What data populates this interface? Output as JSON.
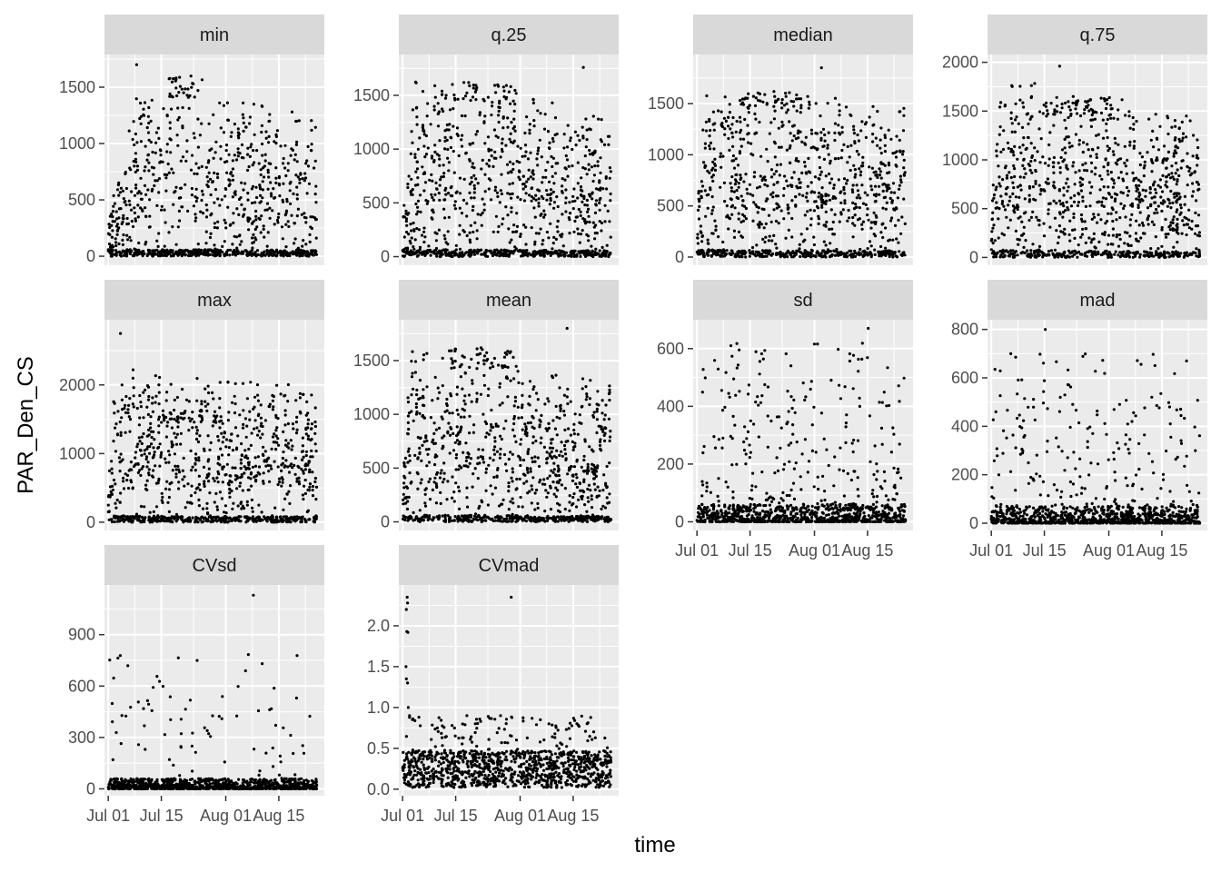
{
  "chart_data": {
    "type": "scatter",
    "facet_layout": "wrap",
    "xlabel": "time",
    "ylabel": "PAR_Den_CS",
    "x_ticks": [
      "Jul 01",
      "Jul 15",
      "Aug 01",
      "Aug 15"
    ],
    "x_tick_dates": [
      "2020-07-01",
      "2020-07-15",
      "2020-08-01",
      "2020-08-15"
    ],
    "xlim": [
      "2020-06-30",
      "2020-08-27"
    ],
    "x_data_range": [
      "2020-07-01",
      "2020-08-25"
    ],
    "grid": true,
    "legend": "none",
    "colors": {
      "panel_background": "#ebebeb",
      "grid": "#ffffff",
      "strip_background": "#d9d9d9",
      "points": "#000000",
      "tick": "#333333"
    },
    "panels": [
      {
        "label": "min",
        "ylim": [
          -80,
          1790
        ],
        "y_ticks": [
          0,
          500,
          1000,
          1500
        ],
        "y_tick_labels": [
          "0",
          "500",
          "1000",
          "1500"
        ],
        "profile": "band",
        "peak": 1700,
        "bandTop": 1600,
        "bandStartDay": 15,
        "bandEndDay": 25,
        "ceilStart": 1550,
        "ceilEnd": 1350,
        "rampDays": 10,
        "zeroFrac": 0.42
      },
      {
        "label": "q.25",
        "ylim": [
          -80,
          1880
        ],
        "y_ticks": [
          0,
          500,
          1000,
          1500
        ],
        "y_tick_labels": [
          "0",
          "500",
          "1000",
          "1500"
        ],
        "profile": "band",
        "peak": 1760,
        "bandTop": 1620,
        "bandStartDay": 13,
        "bandEndDay": 30,
        "ceilStart": 1700,
        "ceilEnd": 1400,
        "rampDays": 4,
        "zeroFrac": 0.32
      },
      {
        "label": "median",
        "ylim": [
          -80,
          1980
        ],
        "y_ticks": [
          0,
          500,
          1000,
          1500
        ],
        "y_tick_labels": [
          "0",
          "500",
          "1000",
          "1500"
        ],
        "profile": "band",
        "peak": 1850,
        "bandTop": 1620,
        "bandStartDay": 12,
        "bandEndDay": 30,
        "ceilStart": 1700,
        "ceilEnd": 1500,
        "rampDays": 3,
        "zeroFrac": 0.3
      },
      {
        "label": "q.75",
        "ylim": [
          -80,
          2080
        ],
        "y_ticks": [
          0,
          500,
          1000,
          1500,
          2000
        ],
        "y_tick_labels": [
          "0",
          "500",
          "1000",
          "1500",
          "2000"
        ],
        "profile": "band",
        "peak": 1960,
        "bandTop": 1640,
        "bandStartDay": 12,
        "bandEndDay": 32,
        "ceilStart": 1900,
        "ceilEnd": 1450,
        "rampDays": 3,
        "zeroFrac": 0.28
      },
      {
        "label": "max",
        "ylim": [
          -120,
          2950
        ],
        "y_ticks": [
          0,
          1000,
          2000
        ],
        "y_tick_labels": [
          "0",
          "1000",
          "2000"
        ],
        "profile": "band",
        "peak": 2750,
        "bandTop": 1650,
        "bandStartDay": 14,
        "bandEndDay": 30,
        "ceilStart": 2300,
        "ceilEnd": 2000,
        "rampDays": 2,
        "zeroFrac": 0.3
      },
      {
        "label": "mean",
        "ylim": [
          -80,
          1880
        ],
        "y_ticks": [
          0,
          500,
          1000,
          1500
        ],
        "y_tick_labels": [
          "0",
          "500",
          "1000",
          "1500"
        ],
        "profile": "band",
        "peak": 1800,
        "bandTop": 1620,
        "bandStartDay": 12,
        "bandEndDay": 30,
        "ceilStart": 1650,
        "ceilEnd": 1300,
        "rampDays": 3,
        "zeroFrac": 0.3
      },
      {
        "label": "sd",
        "ylim": [
          -30,
          700
        ],
        "y_ticks": [
          0,
          200,
          400,
          600
        ],
        "y_tick_labels": [
          "0",
          "200",
          "400",
          "600"
        ],
        "profile": "spiky",
        "peak": 670,
        "baseMax": 60,
        "spikeMax": 620,
        "spikeFrac": 0.22
      },
      {
        "label": "mad",
        "ylim": [
          -30,
          840
        ],
        "y_ticks": [
          0,
          200,
          400,
          600,
          800
        ],
        "y_tick_labels": [
          "0",
          "200",
          "400",
          "600",
          "800"
        ],
        "profile": "spiky",
        "peak": 800,
        "baseMax": 70,
        "spikeMax": 700,
        "spikeFrac": 0.2
      },
      {
        "label": "CVsd",
        "ylim": [
          -40,
          1190
        ],
        "y_ticks": [
          0,
          300,
          600,
          900
        ],
        "y_tick_labels": [
          "0",
          "300",
          "600",
          "900"
        ],
        "profile": "spiky",
        "peak": 1130,
        "baseMax": 60,
        "spikeMax": 800,
        "spikeFrac": 0.08
      },
      {
        "label": "CVmad",
        "ylim": [
          -0.08,
          2.5
        ],
        "y_ticks": [
          0.0,
          0.5,
          1.0,
          1.5,
          2.0
        ],
        "y_tick_labels": [
          "0.0",
          "0.5",
          "1.0",
          "1.5",
          "2.0"
        ],
        "profile": "cv",
        "peak": 2.35,
        "baseMax": 0.45,
        "spikeMax": 0.9,
        "spikeFrac": 0.1
      }
    ]
  }
}
